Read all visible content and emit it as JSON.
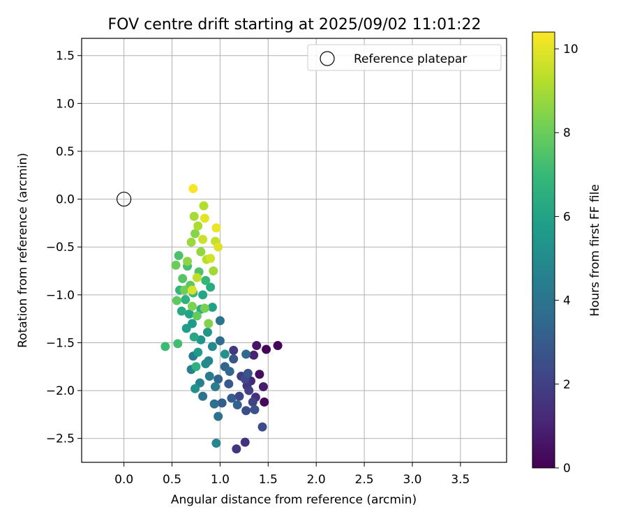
{
  "chart_data": {
    "type": "scatter",
    "title": "FOV centre drift starting at 2025/09/02 11:01:22",
    "xlabel": "Angular distance from reference (arcmin)",
    "ylabel": "Rotation from reference (arcmin)",
    "xlim": [
      -0.44,
      3.98
    ],
    "ylim": [
      -2.75,
      1.68
    ],
    "xticks": [
      0.0,
      0.5,
      1.0,
      1.5,
      2.0,
      2.5,
      3.0,
      3.5
    ],
    "yticks": [
      -2.5,
      -2.0,
      -1.5,
      -1.0,
      -0.5,
      0.0,
      0.5,
      1.0,
      1.5
    ],
    "xtick_labels": [
      "0.0",
      "0.5",
      "1.0",
      "1.5",
      "2.0",
      "2.5",
      "3.0",
      "3.5"
    ],
    "ytick_labels": [
      "−2.5",
      "−2.0",
      "−1.5",
      "−1.0",
      "−0.5",
      "0.0",
      "0.5",
      "1.0",
      "1.5"
    ],
    "grid": true,
    "legend": {
      "position": "top-right",
      "entries": [
        "Reference platepar"
      ]
    },
    "reference_point": {
      "label": "Reference platepar",
      "x": 0.0,
      "y": 0.0,
      "marker": "open-circle"
    },
    "colorbar": {
      "label": "Hours from first FF file",
      "min": 0,
      "max": 10.4,
      "ticks": [
        0,
        2,
        4,
        6,
        8,
        10
      ],
      "tick_labels": [
        "0",
        "2",
        "4",
        "6",
        "8",
        "10"
      ],
      "colormap": "viridis",
      "colors": [
        "#440154",
        "#482878",
        "#3e4989",
        "#31688e",
        "#26828e",
        "#1f9e89",
        "#35b779",
        "#6ece58",
        "#b5de2b",
        "#fde725"
      ]
    },
    "points": [
      {
        "x": 1.6,
        "y": -1.53,
        "h": 0.1
      },
      {
        "x": 1.48,
        "y": -1.57,
        "h": 0.1
      },
      {
        "x": 1.46,
        "y": -2.12,
        "h": 0.2
      },
      {
        "x": 1.41,
        "y": -1.83,
        "h": 0.4
      },
      {
        "x": 1.38,
        "y": -1.53,
        "h": 0.6
      },
      {
        "x": 1.45,
        "y": -1.96,
        "h": 0.8
      },
      {
        "x": 1.35,
        "y": -1.63,
        "h": 1.0
      },
      {
        "x": 1.32,
        "y": -1.9,
        "h": 1.2
      },
      {
        "x": 1.37,
        "y": -2.07,
        "h": 1.4
      },
      {
        "x": 1.26,
        "y": -2.54,
        "h": 1.5
      },
      {
        "x": 1.17,
        "y": -2.61,
        "h": 1.6
      },
      {
        "x": 1.28,
        "y": -1.95,
        "h": 1.7
      },
      {
        "x": 1.14,
        "y": -1.58,
        "h": 1.8
      },
      {
        "x": 1.22,
        "y": -1.85,
        "h": 1.9
      },
      {
        "x": 1.3,
        "y": -2.0,
        "h": 2.0
      },
      {
        "x": 1.34,
        "y": -2.12,
        "h": 2.1
      },
      {
        "x": 1.2,
        "y": -2.06,
        "h": 2.2
      },
      {
        "x": 1.26,
        "y": -1.88,
        "h": 2.3
      },
      {
        "x": 1.44,
        "y": -2.38,
        "h": 2.4
      },
      {
        "x": 1.27,
        "y": -2.21,
        "h": 2.5
      },
      {
        "x": 1.36,
        "y": -2.2,
        "h": 2.6
      },
      {
        "x": 1.29,
        "y": -1.82,
        "h": 2.7
      },
      {
        "x": 1.14,
        "y": -1.67,
        "h": 2.8
      },
      {
        "x": 1.09,
        "y": -1.93,
        "h": 2.9
      },
      {
        "x": 1.12,
        "y": -2.08,
        "h": 3.0
      },
      {
        "x": 1.02,
        "y": -2.13,
        "h": 3.1
      },
      {
        "x": 1.18,
        "y": -2.15,
        "h": 3.2
      },
      {
        "x": 1.05,
        "y": -1.75,
        "h": 3.3
      },
      {
        "x": 0.98,
        "y": -1.88,
        "h": 3.4
      },
      {
        "x": 1.1,
        "y": -1.8,
        "h": 3.5
      },
      {
        "x": 1.27,
        "y": -1.62,
        "h": 3.6
      },
      {
        "x": 1.0,
        "y": -1.48,
        "h": 3.7
      },
      {
        "x": 0.94,
        "y": -2.14,
        "h": 3.8
      },
      {
        "x": 0.82,
        "y": -2.06,
        "h": 3.9
      },
      {
        "x": 0.98,
        "y": -2.27,
        "h": 4.0
      },
      {
        "x": 1.0,
        "y": -1.27,
        "h": 4.1
      },
      {
        "x": 0.72,
        "y": -1.64,
        "h": 4.2
      },
      {
        "x": 0.89,
        "y": -1.85,
        "h": 4.3
      },
      {
        "x": 0.95,
        "y": -1.96,
        "h": 4.4
      },
      {
        "x": 0.7,
        "y": -1.78,
        "h": 4.5
      },
      {
        "x": 0.79,
        "y": -1.92,
        "h": 4.6
      },
      {
        "x": 0.88,
        "y": -1.69,
        "h": 4.7
      },
      {
        "x": 0.96,
        "y": -2.55,
        "h": 4.8
      },
      {
        "x": 0.92,
        "y": -1.54,
        "h": 4.9
      },
      {
        "x": 0.85,
        "y": -1.72,
        "h": 5.0
      },
      {
        "x": 0.74,
        "y": -1.98,
        "h": 5.2
      },
      {
        "x": 1.05,
        "y": -1.62,
        "h": 5.3
      },
      {
        "x": 0.8,
        "y": -1.47,
        "h": 5.4
      },
      {
        "x": 0.87,
        "y": -1.39,
        "h": 5.5
      },
      {
        "x": 0.71,
        "y": -1.3,
        "h": 5.6
      },
      {
        "x": 0.77,
        "y": -1.6,
        "h": 5.7
      },
      {
        "x": 0.65,
        "y": -1.35,
        "h": 5.8
      },
      {
        "x": 0.92,
        "y": -1.13,
        "h": 5.9
      },
      {
        "x": 0.68,
        "y": -1.2,
        "h": 6.0
      },
      {
        "x": 0.82,
        "y": -1.0,
        "h": 6.1
      },
      {
        "x": 0.73,
        "y": -1.44,
        "h": 6.2
      },
      {
        "x": 0.6,
        "y": -1.17,
        "h": 6.3
      },
      {
        "x": 0.9,
        "y": -0.92,
        "h": 6.4
      },
      {
        "x": 0.8,
        "y": -1.15,
        "h": 6.5
      },
      {
        "x": 0.75,
        "y": -1.75,
        "h": 6.6
      },
      {
        "x": 0.64,
        "y": -1.05,
        "h": 6.7
      },
      {
        "x": 0.58,
        "y": -0.95,
        "h": 6.8
      },
      {
        "x": 0.85,
        "y": -0.85,
        "h": 6.9
      },
      {
        "x": 0.72,
        "y": -0.98,
        "h": 7.0
      },
      {
        "x": 0.43,
        "y": -1.54,
        "h": 7.1
      },
      {
        "x": 0.56,
        "y": -1.51,
        "h": 7.2
      },
      {
        "x": 0.66,
        "y": -0.7,
        "h": 7.3
      },
      {
        "x": 0.57,
        "y": -0.59,
        "h": 7.4
      },
      {
        "x": 0.78,
        "y": -0.76,
        "h": 7.5
      },
      {
        "x": 0.61,
        "y": -0.83,
        "h": 7.6
      },
      {
        "x": 0.69,
        "y": -0.9,
        "h": 7.7
      },
      {
        "x": 0.55,
        "y": -1.06,
        "h": 7.8
      },
      {
        "x": 0.76,
        "y": -1.22,
        "h": 7.9
      },
      {
        "x": 0.54,
        "y": -0.69,
        "h": 8.0
      },
      {
        "x": 0.63,
        "y": -0.95,
        "h": 8.1
      },
      {
        "x": 0.84,
        "y": -1.14,
        "h": 8.2
      },
      {
        "x": 0.71,
        "y": -1.12,
        "h": 8.3
      },
      {
        "x": 0.88,
        "y": -1.3,
        "h": 8.4
      },
      {
        "x": 0.74,
        "y": -0.36,
        "h": 8.5
      },
      {
        "x": 0.66,
        "y": -0.65,
        "h": 8.6
      },
      {
        "x": 0.8,
        "y": -0.55,
        "h": 8.7
      },
      {
        "x": 0.7,
        "y": -0.45,
        "h": 8.8
      },
      {
        "x": 0.93,
        "y": -0.75,
        "h": 8.9
      },
      {
        "x": 0.73,
        "y": -0.18,
        "h": 9.0
      },
      {
        "x": 0.77,
        "y": -0.28,
        "h": 9.1
      },
      {
        "x": 0.83,
        "y": -0.07,
        "h": 9.2
      },
      {
        "x": 0.86,
        "y": -0.63,
        "h": 9.3
      },
      {
        "x": 0.76,
        "y": -0.82,
        "h": 9.4
      },
      {
        "x": 0.95,
        "y": -0.44,
        "h": 9.5
      },
      {
        "x": 0.82,
        "y": -0.42,
        "h": 9.6
      },
      {
        "x": 0.9,
        "y": -0.62,
        "h": 9.7
      },
      {
        "x": 0.71,
        "y": -0.95,
        "h": 9.8
      },
      {
        "x": 0.98,
        "y": -0.5,
        "h": 9.9
      },
      {
        "x": 0.84,
        "y": -0.2,
        "h": 10.0
      },
      {
        "x": 0.96,
        "y": -0.3,
        "h": 10.1
      },
      {
        "x": 0.72,
        "y": 0.11,
        "h": 10.3
      }
    ]
  }
}
